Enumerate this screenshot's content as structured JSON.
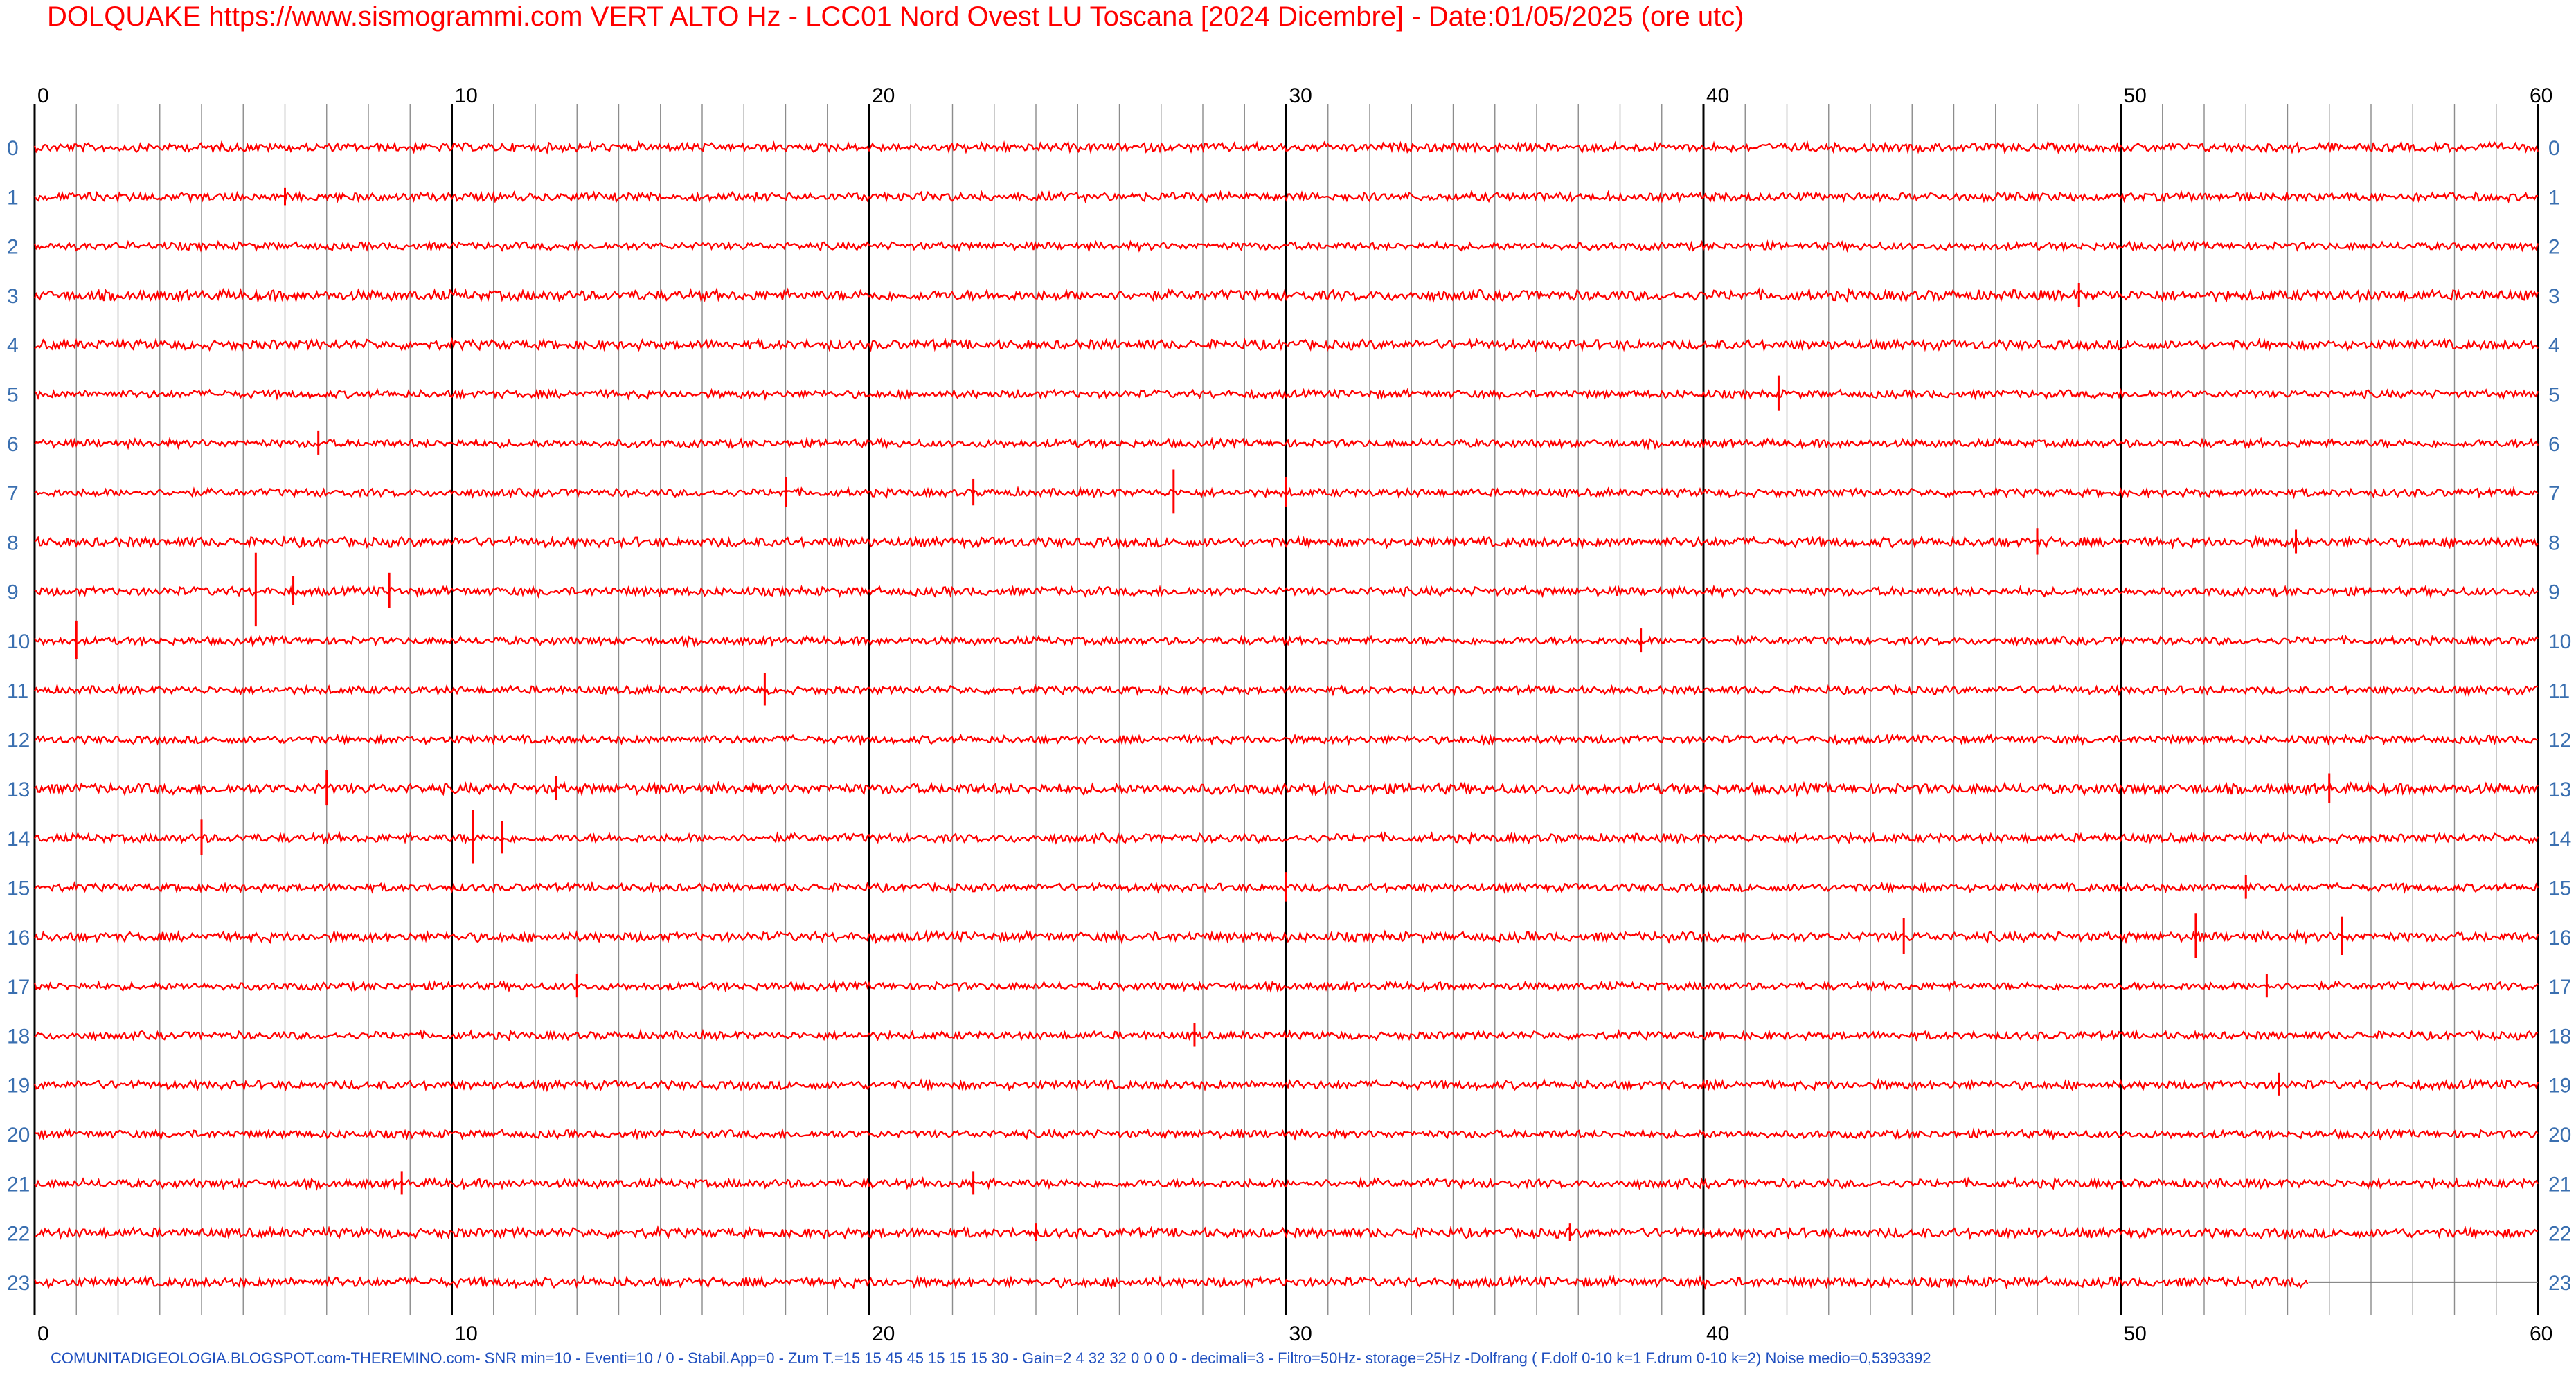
{
  "title": "DOLQUAKE https://www.sismogrammi.com  VERT ALTO   Hz - LCC01 Nord Ovest  LU Toscana [2024 Dicembre] - Date:01/05/2025 (ore utc)",
  "footer": "COMUNITADIGEOLOGIA.BLOGSPOT.com-THEREMINO.com- SNR min=10 - Eventi=10 / 0 - Stabil.App=0 - Zum T.=15 15 45 45 15 15 15 30 - Gain=2 4 32 32 0 0 0 0 - decimali=3 - Filtro=50Hz- storage=25Hz -Dolfrang ( F.dolf 0-10 k=1 F.drum 0-10 k=2) Noise medio=0,5393392",
  "colors": {
    "title": "#ff0000",
    "footer": "#1f4fbf",
    "trace": "#ff0000",
    "hour_label": "#3a6fb0",
    "minute_label": "#000000",
    "minor_grid": "#8c8c8c",
    "major_grid": "#000000",
    "event_mark": "#1f6fd0"
  },
  "chart_data": {
    "type": "seismogram",
    "x_label_unit": "minutes",
    "xlim": [
      0,
      60
    ],
    "x_ticks_labeled": [
      0,
      10,
      20,
      30,
      40,
      50,
      60
    ],
    "minor_tick_step_minutes": 1,
    "hours": [
      0,
      1,
      2,
      3,
      4,
      5,
      6,
      7,
      8,
      9,
      10,
      11,
      12,
      13,
      14,
      15,
      16,
      17,
      18,
      19,
      20,
      21,
      22,
      23
    ],
    "last_hour_recorded_until_minute": 54.5,
    "traces": [
      {
        "hour": 0,
        "amplitude": 0.5,
        "spikes": []
      },
      {
        "hour": 1,
        "amplitude": 0.5,
        "spikes": [
          {
            "minute": 6.0,
            "amp": 0.6
          }
        ]
      },
      {
        "hour": 2,
        "amplitude": 0.45,
        "spikes": []
      },
      {
        "hour": 3,
        "amplitude": 0.6,
        "spikes": [
          {
            "minute": 49.0,
            "amp": 0.8
          }
        ]
      },
      {
        "hour": 4,
        "amplitude": 0.55,
        "spikes": []
      },
      {
        "hour": 5,
        "amplitude": 0.45,
        "spikes": [
          {
            "minute": 41.8,
            "amp": 1.2
          }
        ]
      },
      {
        "hour": 6,
        "amplitude": 0.45,
        "spikes": [
          {
            "minute": 6.8,
            "amp": 0.8
          }
        ]
      },
      {
        "hour": 7,
        "amplitude": 0.45,
        "spikes": [
          {
            "minute": 18.0,
            "amp": 1.0
          },
          {
            "minute": 22.5,
            "amp": 0.9
          },
          {
            "minute": 27.3,
            "amp": 1.5
          },
          {
            "minute": 30.0,
            "amp": 1.0
          }
        ]
      },
      {
        "hour": 8,
        "amplitude": 0.55,
        "spikes": [
          {
            "minute": 48.0,
            "amp": 0.9
          },
          {
            "minute": 54.2,
            "amp": 0.8
          }
        ]
      },
      {
        "hour": 9,
        "amplitude": 0.5,
        "spikes": [
          {
            "minute": 5.3,
            "amp": 2.5
          },
          {
            "minute": 8.5,
            "amp": 1.2
          },
          {
            "minute": 6.2,
            "amp": 1.0
          }
        ]
      },
      {
        "hour": 10,
        "amplitude": 0.45,
        "spikes": [
          {
            "minute": 1.0,
            "amp": 1.3
          },
          {
            "minute": 38.5,
            "amp": 0.8
          }
        ]
      },
      {
        "hour": 11,
        "amplitude": 0.45,
        "spikes": [
          {
            "minute": 17.5,
            "amp": 1.1
          }
        ]
      },
      {
        "hour": 12,
        "amplitude": 0.45,
        "spikes": []
      },
      {
        "hour": 13,
        "amplitude": 0.6,
        "spikes": [
          {
            "minute": 7.0,
            "amp": 1.2
          },
          {
            "minute": 12.5,
            "amp": 0.8
          },
          {
            "minute": 55.0,
            "amp": 1.0
          }
        ]
      },
      {
        "hour": 14,
        "amplitude": 0.5,
        "spikes": [
          {
            "minute": 4.0,
            "amp": 1.2
          },
          {
            "minute": 10.5,
            "amp": 1.8
          },
          {
            "minute": 11.2,
            "amp": 1.1
          }
        ]
      },
      {
        "hour": 15,
        "amplitude": 0.45,
        "spikes": [
          {
            "minute": 30.0,
            "amp": 1.0
          },
          {
            "minute": 53.0,
            "amp": 0.8
          }
        ]
      },
      {
        "hour": 16,
        "amplitude": 0.55,
        "spikes": [
          {
            "minute": 44.8,
            "amp": 1.2
          },
          {
            "minute": 51.8,
            "amp": 1.5
          },
          {
            "minute": 55.3,
            "amp": 1.3
          }
        ]
      },
      {
        "hour": 17,
        "amplitude": 0.45,
        "spikes": [
          {
            "minute": 13.0,
            "amp": 0.8
          },
          {
            "minute": 53.5,
            "amp": 0.8
          }
        ]
      },
      {
        "hour": 18,
        "amplitude": 0.45,
        "spikes": [
          {
            "minute": 27.8,
            "amp": 0.8
          }
        ]
      },
      {
        "hour": 19,
        "amplitude": 0.5,
        "spikes": [
          {
            "minute": 53.8,
            "amp": 0.8
          }
        ]
      },
      {
        "hour": 20,
        "amplitude": 0.45,
        "spikes": []
      },
      {
        "hour": 21,
        "amplitude": 0.5,
        "spikes": [
          {
            "minute": 8.8,
            "amp": 0.8
          },
          {
            "minute": 22.5,
            "amp": 0.8
          }
        ]
      },
      {
        "hour": 22,
        "amplitude": 0.55,
        "spikes": [
          {
            "minute": 24.0,
            "amp": 0.6
          },
          {
            "minute": 36.8,
            "amp": 0.6
          }
        ]
      },
      {
        "hour": 23,
        "amplitude": 0.55,
        "spikes": []
      }
    ]
  }
}
